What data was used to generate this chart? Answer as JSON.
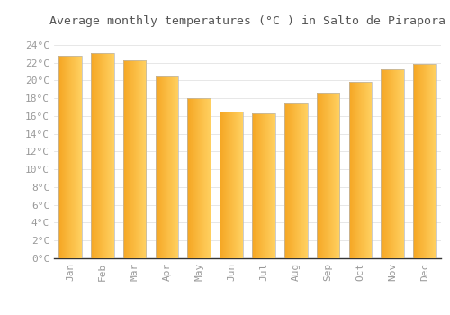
{
  "title": "Average monthly temperatures (°C ) in Salto de Pirapora",
  "months": [
    "Jan",
    "Feb",
    "Mar",
    "Apr",
    "May",
    "Jun",
    "Jul",
    "Aug",
    "Sep",
    "Oct",
    "Nov",
    "Dec"
  ],
  "values": [
    22.8,
    23.1,
    22.3,
    20.4,
    18.0,
    16.5,
    16.3,
    17.4,
    18.6,
    19.8,
    21.2,
    21.9
  ],
  "bar_color_left": "#F5A623",
  "bar_color_right": "#FFD060",
  "bar_edge_color": "#B8B8B8",
  "background_color": "#FFFFFF",
  "plot_bg_color": "#FFFFFF",
  "grid_color": "#DDDDDD",
  "ytick_labels": [
    "0°C",
    "2°C",
    "4°C",
    "6°C",
    "8°C",
    "10°C",
    "12°C",
    "14°C",
    "16°C",
    "18°C",
    "20°C",
    "22°C",
    "24°C"
  ],
  "ytick_values": [
    0,
    2,
    4,
    6,
    8,
    10,
    12,
    14,
    16,
    18,
    20,
    22,
    24
  ],
  "ylim": [
    0,
    25.5
  ],
  "title_fontsize": 9.5,
  "tick_fontsize": 8,
  "font_family": "monospace",
  "title_color": "#555555",
  "tick_color": "#999999",
  "bar_width": 0.72,
  "n_gradient_steps": 50
}
